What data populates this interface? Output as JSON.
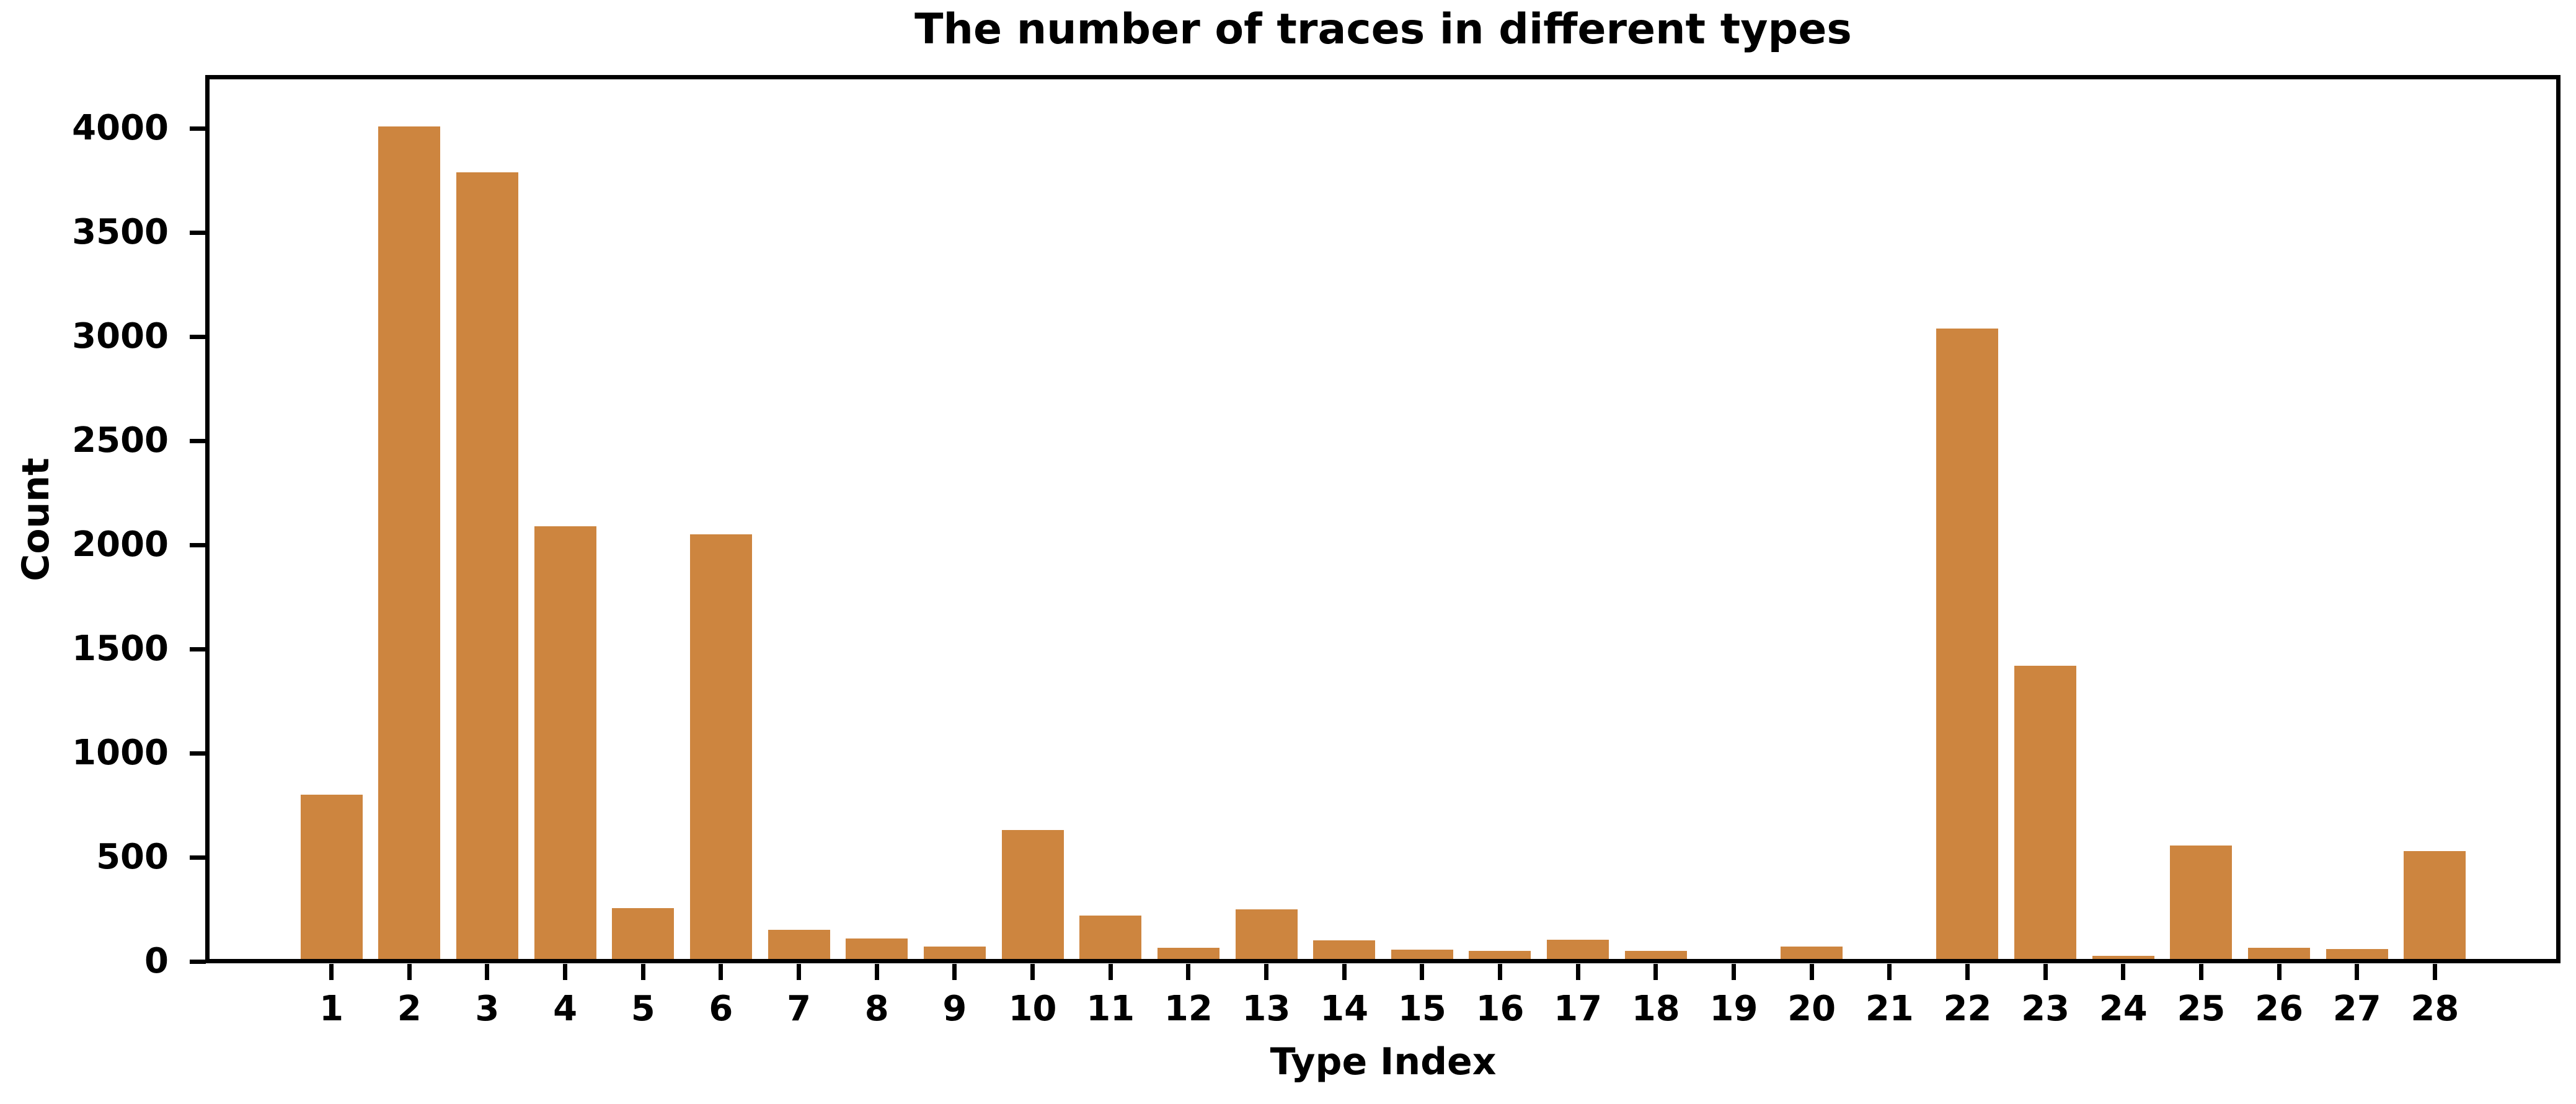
{
  "chart_data": {
    "type": "bar",
    "title": "The number of traces in different types",
    "xlabel": "Type Index",
    "ylabel": "Count",
    "categories": [
      1,
      2,
      3,
      4,
      5,
      6,
      7,
      8,
      9,
      10,
      11,
      12,
      13,
      14,
      15,
      16,
      17,
      18,
      19,
      20,
      21,
      22,
      23,
      24,
      25,
      26,
      27,
      28
    ],
    "values": [
      790,
      4000,
      3780,
      2080,
      245,
      2040,
      140,
      100,
      60,
      620,
      210,
      55,
      240,
      90,
      45,
      40,
      95,
      40,
      0,
      60,
      0,
      3030,
      1410,
      15,
      545,
      55,
      50,
      520
    ],
    "yticks": [
      0,
      500,
      1000,
      1500,
      2000,
      2500,
      3000,
      3500,
      4000
    ],
    "ylim": [
      0,
      4245
    ],
    "grid": false,
    "legend": "none",
    "bar_color": "#CD853F",
    "axis_color": "#000000",
    "background_color": "#FFFFFF"
  }
}
